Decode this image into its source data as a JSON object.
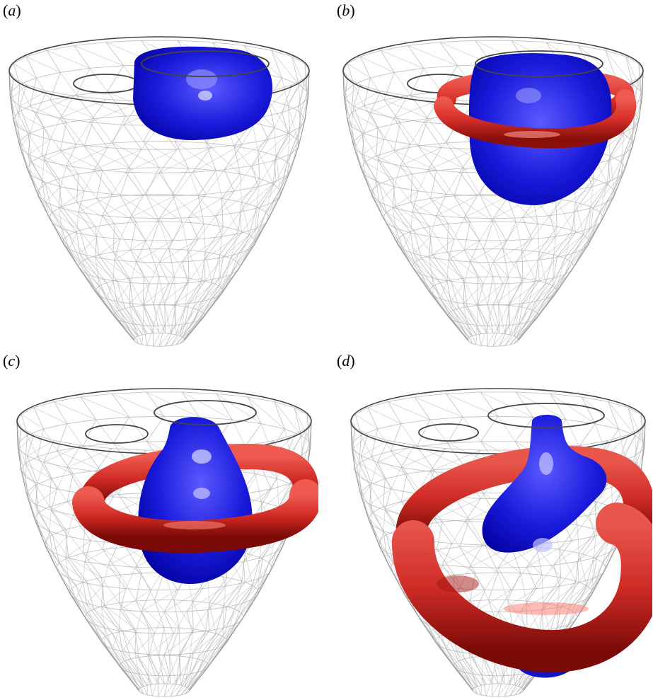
{
  "figure": {
    "panels": [
      {
        "id": "a",
        "label_open": "(",
        "label_letter": "a",
        "label_close": ")"
      },
      {
        "id": "b",
        "label_open": "(",
        "label_letter": "b",
        "label_close": ")"
      },
      {
        "id": "c",
        "label_open": "(",
        "label_letter": "c",
        "label_close": ")"
      },
      {
        "id": "d",
        "label_open": "(",
        "label_letter": "d",
        "label_close": ")"
      }
    ],
    "colors": {
      "wireframe": "#b8b8b8",
      "rim": "#444444",
      "blue_core": "#1a1adc",
      "blue_dark": "#00009a",
      "red_core": "#d8302a",
      "red_dark": "#8a0e0a"
    }
  }
}
